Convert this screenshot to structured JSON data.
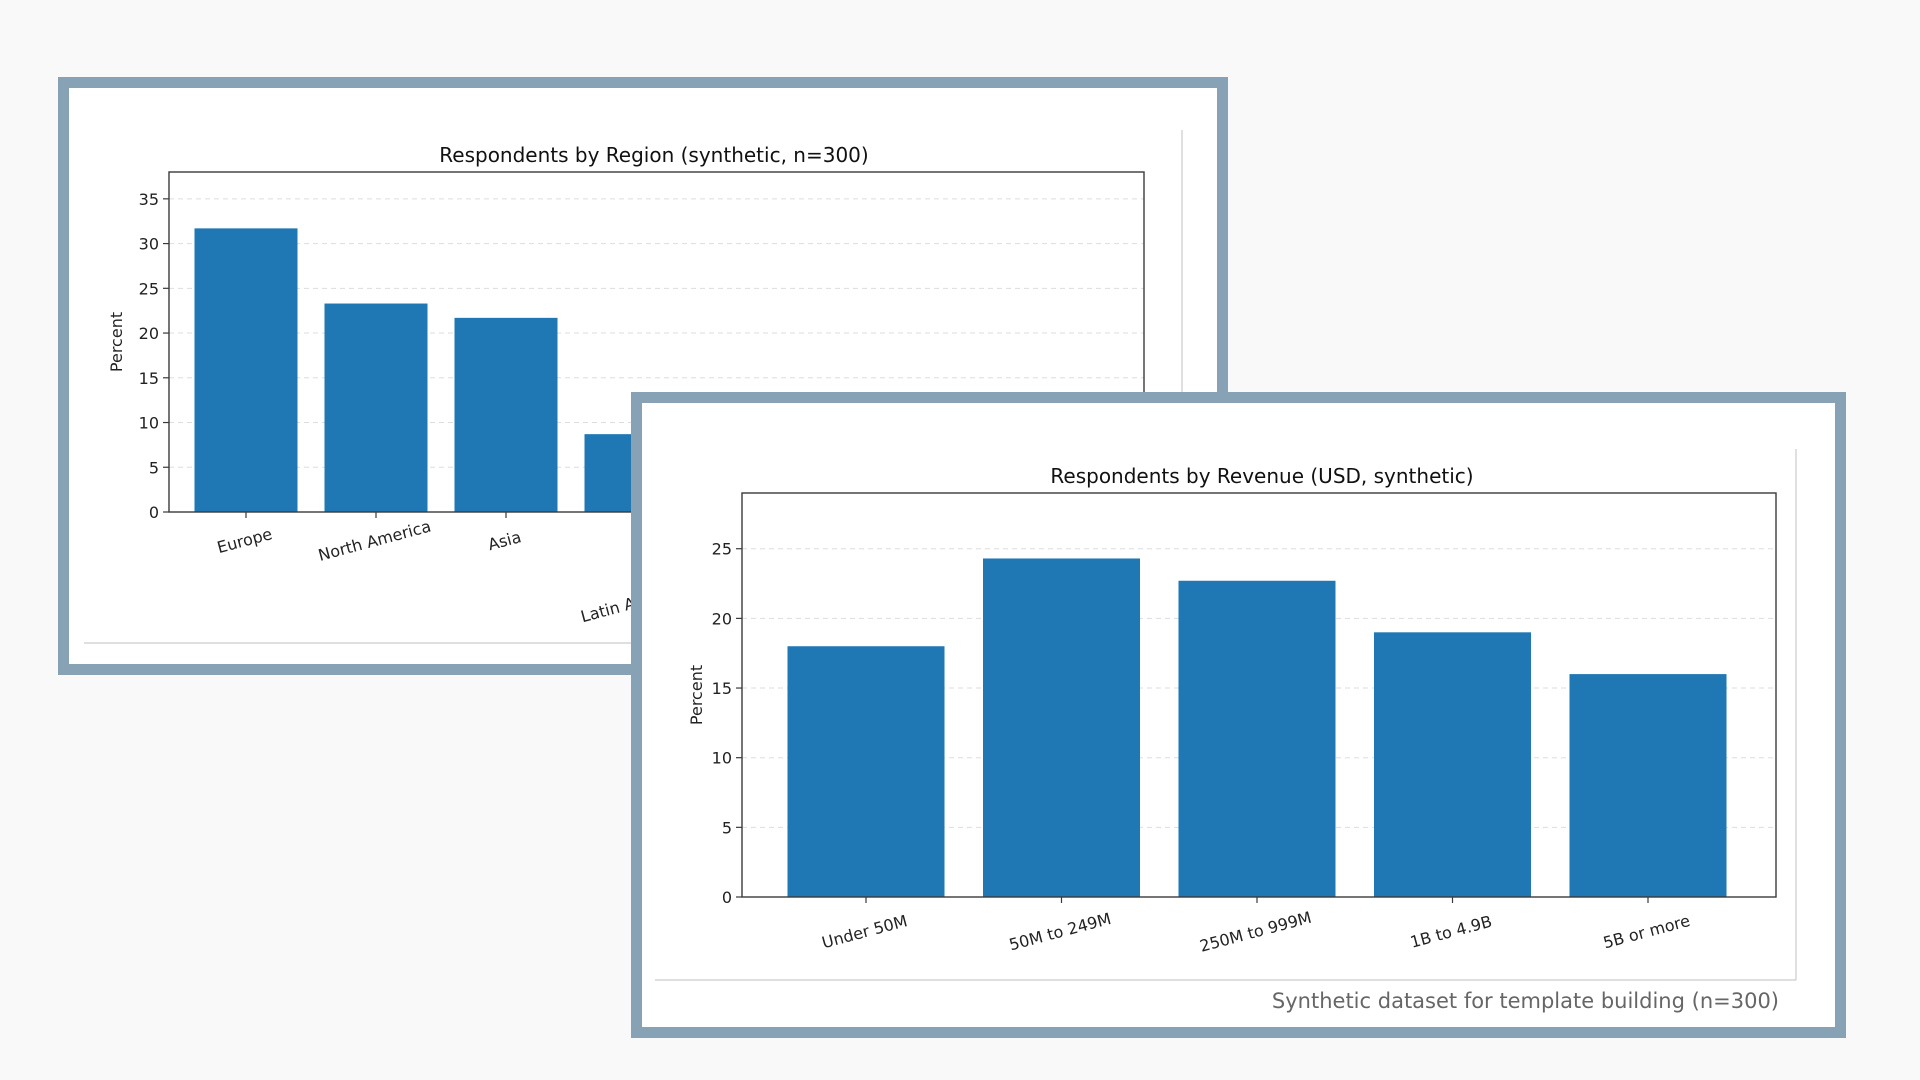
{
  "chart_data": [
    {
      "type": "bar",
      "title": "Respondents by Region (synthetic, n=300)",
      "ylabel": "Percent",
      "xlabel": "",
      "ylim": [
        0,
        38
      ],
      "yticks": [
        0,
        5,
        10,
        15,
        20,
        25,
        30,
        35
      ],
      "grid": true,
      "categories": [
        "Europe",
        "North America",
        "Asia",
        "Latin America"
      ],
      "values": [
        31.7,
        23.3,
        21.7,
        8.7
      ],
      "bar_color": "#1f77b4"
    },
    {
      "type": "bar",
      "title": "Respondents by Revenue (USD, synthetic)",
      "ylabel": "Percent",
      "xlabel": "",
      "ylim": [
        0,
        29
      ],
      "yticks": [
        0,
        5,
        10,
        15,
        20,
        25
      ],
      "grid": true,
      "categories": [
        "Under 50M",
        "50M to 249M",
        "250M to 999M",
        "1B to 4.9B",
        "5B or more"
      ],
      "values": [
        18.0,
        24.3,
        22.7,
        19.0,
        16.0
      ],
      "bar_color": "#1f77b4",
      "footnote": "Synthetic dataset for template building (n=300)"
    }
  ]
}
